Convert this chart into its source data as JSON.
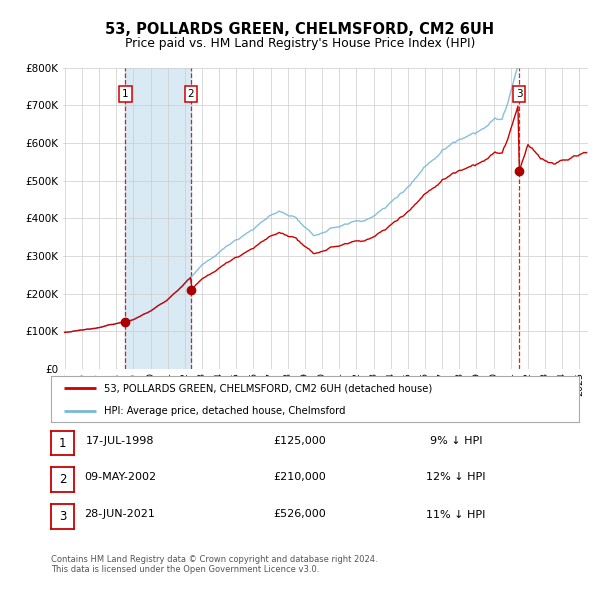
{
  "title": "53, POLLARDS GREEN, CHELMSFORD, CM2 6UH",
  "subtitle": "Price paid vs. HM Land Registry's House Price Index (HPI)",
  "ylim": [
    0,
    800000
  ],
  "ytick_labels": [
    "£0",
    "£100K",
    "£200K",
    "£300K",
    "£400K",
    "£500K",
    "£600K",
    "£700K",
    "£800K"
  ],
  "ytick_values": [
    0,
    100000,
    200000,
    300000,
    400000,
    500000,
    600000,
    700000,
    800000
  ],
  "x_start_year": 1995,
  "x_end_year": 2025,
  "red_line_color": "#cc0000",
  "blue_line_color": "#7ab8d9",
  "sale_marker_color": "#aa0000",
  "vline_color": "#cc0000",
  "vband_color": "#daeaf5",
  "grid_color": "#cccccc",
  "background_color": "#ffffff",
  "legend_line1": "53, POLLARDS GREEN, CHELMSFORD, CM2 6UH (detached house)",
  "legend_line2": "HPI: Average price, detached house, Chelmsford",
  "sale1_price": 125000,
  "sale1_year": 1998.54,
  "sale2_price": 210000,
  "sale2_year": 2002.36,
  "sale3_price": 526000,
  "sale3_year": 2021.49,
  "footer1": "Contains HM Land Registry data © Crown copyright and database right 2024.",
  "footer2": "This data is licensed under the Open Government Licence v3.0."
}
